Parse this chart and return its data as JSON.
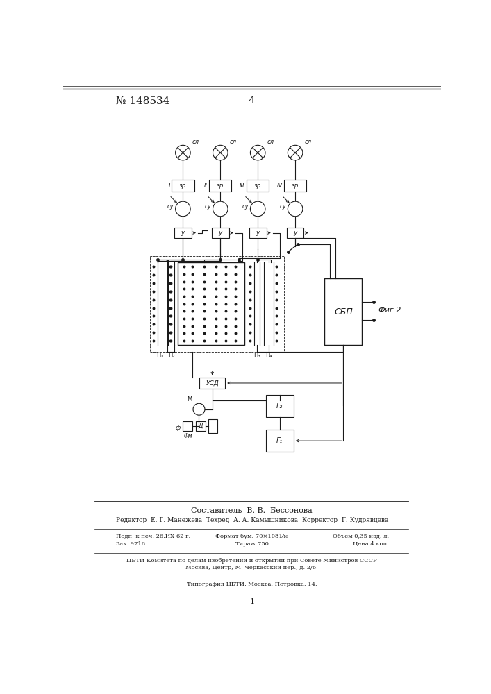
{
  "title": "№ 148534",
  "page_num": "— 4 —",
  "background_color": "#ffffff",
  "line_color": "#1a1a1a",
  "text_color": "#1a1a1a",
  "footer_composer": "Составитель  В. В.  Бессонова",
  "footer_editor": "Редактор  Е. Г. Манежева",
  "footer_techred": "Техред  А. А. Камышникова",
  "footer_corrector": "Корректор  Г. Кудрявцева",
  "footer_line1a": "Подп. к печ. 26.ИХ-62 г.",
  "footer_line1b": "Формат бум. 70×1081⁄₁₆",
  "footer_line1c": "Объем 0,35 изд. л.",
  "footer_line2a": "Зак. 9716",
  "footer_line2b": "Тираж 750",
  "footer_line2c": "Цена 4 коп.",
  "footer_cbti1": "ЦБТИ Комитета по делам изобретений и открытий при Совете Министров СССР",
  "footer_cbti2": "Москва, Центр, М. Черкасский пер., д. 2/6.",
  "footer_tipografia": "Типография ЦБТИ, Москва, Петровка, 14.",
  "page_number": "1"
}
